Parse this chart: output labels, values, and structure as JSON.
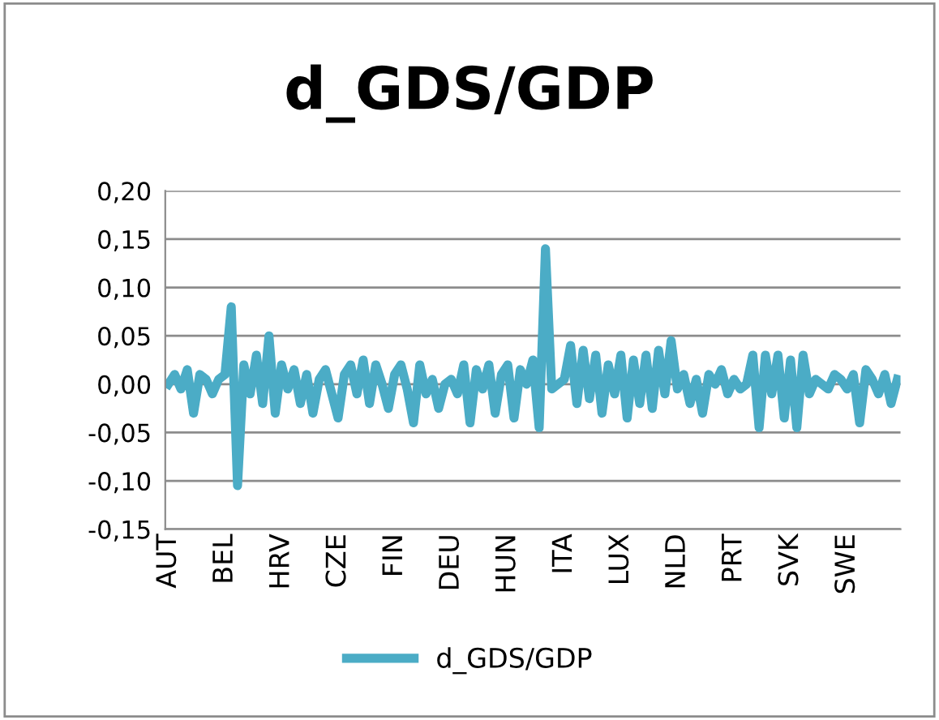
{
  "chart_data": {
    "type": "line",
    "title": "d_GDS/GDP",
    "categories": [
      "AUT",
      null,
      null,
      null,
      null,
      null,
      null,
      null,
      null,
      "BEL",
      null,
      null,
      null,
      null,
      null,
      null,
      null,
      null,
      "HRV",
      null,
      null,
      null,
      null,
      null,
      null,
      null,
      null,
      "CZE",
      null,
      null,
      null,
      null,
      null,
      null,
      null,
      null,
      "FIN",
      null,
      null,
      null,
      null,
      null,
      null,
      null,
      null,
      "DEU",
      null,
      null,
      null,
      null,
      null,
      null,
      null,
      null,
      "HUN",
      null,
      null,
      null,
      null,
      null,
      null,
      null,
      null,
      "ITA",
      null,
      null,
      null,
      null,
      null,
      null,
      null,
      null,
      "LUX",
      null,
      null,
      null,
      null,
      null,
      null,
      null,
      null,
      "NLD",
      null,
      null,
      null,
      null,
      null,
      null,
      null,
      null,
      "PRT",
      null,
      null,
      null,
      null,
      null,
      null,
      null,
      null,
      "SVK",
      null,
      null,
      null,
      null,
      null,
      null,
      null,
      null,
      "SWE",
      null,
      null,
      null,
      null,
      null,
      null,
      null,
      null
    ],
    "series": [
      {
        "name": "d_GDS/GDP",
        "color": "#4bacc6",
        "values": [
          0.0,
          0.01,
          -0.005,
          0.015,
          -0.03,
          0.01,
          0.005,
          -0.01,
          0.005,
          0.01,
          0.08,
          -0.105,
          0.02,
          -0.01,
          0.03,
          -0.02,
          0.05,
          -0.03,
          0.02,
          -0.005,
          0.015,
          -0.02,
          0.01,
          -0.03,
          0.005,
          0.015,
          -0.01,
          -0.035,
          0.01,
          0.02,
          -0.01,
          0.025,
          -0.02,
          0.02,
          0.0,
          -0.025,
          0.01,
          0.02,
          -0.005,
          -0.04,
          0.02,
          -0.01,
          0.005,
          -0.025,
          0.0,
          0.005,
          -0.01,
          0.02,
          -0.04,
          0.015,
          -0.005,
          0.02,
          -0.03,
          0.01,
          0.02,
          -0.035,
          0.015,
          0.0,
          0.025,
          -0.045,
          0.14,
          -0.005,
          0.0,
          0.005,
          0.04,
          -0.02,
          0.035,
          -0.015,
          0.03,
          -0.03,
          0.02,
          -0.01,
          0.03,
          -0.035,
          0.025,
          -0.02,
          0.03,
          -0.025,
          0.035,
          -0.01,
          0.045,
          -0.005,
          0.01,
          -0.02,
          0.005,
          -0.03,
          0.01,
          0.0,
          0.015,
          -0.01,
          0.005,
          -0.005,
          0.0,
          0.03,
          -0.045,
          0.03,
          -0.01,
          0.03,
          -0.035,
          0.025,
          -0.045,
          0.03,
          -0.01,
          0.005,
          0.0,
          -0.005,
          0.01,
          0.005,
          -0.005,
          0.01,
          -0.04,
          0.015,
          0.005,
          -0.01,
          0.01,
          -0.02,
          0.005
        ]
      }
    ],
    "ylim": [
      -0.15,
      0.2
    ],
    "yticks": [
      {
        "value": -0.15,
        "label": "-0,15"
      },
      {
        "value": -0.1,
        "label": "-0,10"
      },
      {
        "value": -0.05,
        "label": "-0,05"
      },
      {
        "value": 0,
        "label": "0,00"
      },
      {
        "value": 0.05,
        "label": "0,05"
      },
      {
        "value": 0.1,
        "label": "0,10"
      },
      {
        "value": 0.15,
        "label": "0,15"
      },
      {
        "value": 0.2,
        "label": "0,20"
      }
    ],
    "grid": "y",
    "legend": "bottom",
    "line_style": "solid",
    "marker": "none"
  }
}
